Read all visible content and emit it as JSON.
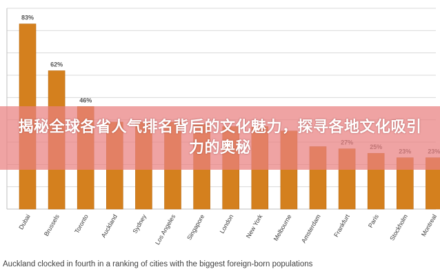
{
  "banner": {
    "title": "揭秘全球各省人气排名背后的文化魅力，探寻各地文化吸引力的奥秘"
  },
  "caption": "Auckland clocked in fourth in a ranking of cities with the biggest foreign-born populations",
  "colors": {
    "bar": "#D4801E",
    "bar_edge": "#B86A12",
    "grid": "#D9D9D9",
    "banner": "#E98080"
  },
  "chart_data": {
    "type": "bar",
    "categories": [
      "Dubai",
      "Brussels",
      "Toronto",
      "Auckland",
      "Sydney",
      "Los Angeles",
      "Singapore",
      "London",
      "New York",
      "Melbourne",
      "Amsterdam",
      "Frankfurt",
      "Paris",
      "Stockholm",
      "Montreal"
    ],
    "values": [
      83,
      62,
      46,
      39,
      39,
      39,
      38,
      37,
      37,
      35,
      28,
      27,
      25,
      23,
      23
    ],
    "value_labels": [
      "83%",
      "62%",
      "46%",
      "",
      "",
      "",
      "",
      "",
      "",
      "",
      "",
      "27%",
      "25%",
      "23%",
      "23%"
    ],
    "title": "",
    "xlabel": "",
    "ylabel": "",
    "ylim": [
      0,
      90
    ],
    "grid": true,
    "legend": "none"
  }
}
